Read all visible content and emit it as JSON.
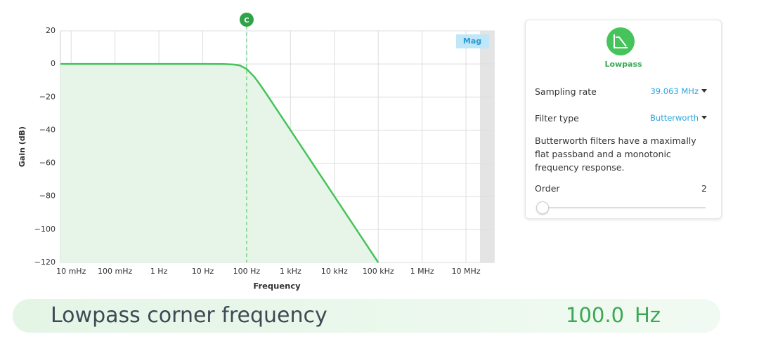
{
  "chart_data": {
    "type": "line",
    "xlabel": "Frequency",
    "ylabel": "Gain (dB)",
    "log_x": true,
    "grid": true,
    "color": "#46c35a",
    "fill": "#e6f5e8",
    "badge": "Mag",
    "cursor": {
      "x": 100,
      "label": "C"
    },
    "x": [
      0.0057,
      0.01,
      0.1,
      1,
      10,
      30,
      50,
      70,
      100,
      150,
      200,
      300,
      500,
      1000,
      10000,
      100000
    ],
    "values": [
      0,
      0,
      0,
      0,
      0,
      -0.04,
      -0.3,
      -0.9,
      -3.0,
      -7.8,
      -12.3,
      -19.1,
      -28.0,
      -40.0,
      -80.0,
      -120.0
    ],
    "xlim": [
      0.0057,
      43600000
    ],
    "xticks": [
      {
        "value": 0.01,
        "label": "10 mHz"
      },
      {
        "value": 0.1,
        "label": "100 mHz"
      },
      {
        "value": 1,
        "label": "1 Hz"
      },
      {
        "value": 10,
        "label": "10 Hz"
      },
      {
        "value": 100,
        "label": "100 Hz"
      },
      {
        "value": 1000,
        "label": "1 kHz"
      },
      {
        "value": 10000,
        "label": "10 kHz"
      },
      {
        "value": 100000,
        "label": "100 kHz"
      },
      {
        "value": 1000000,
        "label": "1 MHz"
      },
      {
        "value": 10000000,
        "label": "10 MHz"
      }
    ],
    "ylim": [
      -120,
      20
    ],
    "yticks": [
      20,
      0,
      {
        "value": -20,
        "label": "−20"
      },
      {
        "value": -40,
        "label": "−40"
      },
      {
        "value": -60,
        "label": "−60"
      },
      {
        "value": -80,
        "label": "−80"
      },
      {
        "value": -100,
        "label": "−100"
      },
      {
        "value": -120,
        "label": "−120"
      }
    ]
  },
  "panel": {
    "title": "Lowpass",
    "sampling_label": "Sampling rate",
    "sampling_value": "39.063 MHz",
    "filter_label": "Filter type",
    "filter_value": "Butterworth",
    "description": "Butterworth filters have a maximally flat passband and a monotonic frequency response.",
    "order_label": "Order",
    "order_value": "2"
  },
  "footer": {
    "label": "Lowpass corner frequency",
    "value": "100.0",
    "unit": "Hz"
  }
}
